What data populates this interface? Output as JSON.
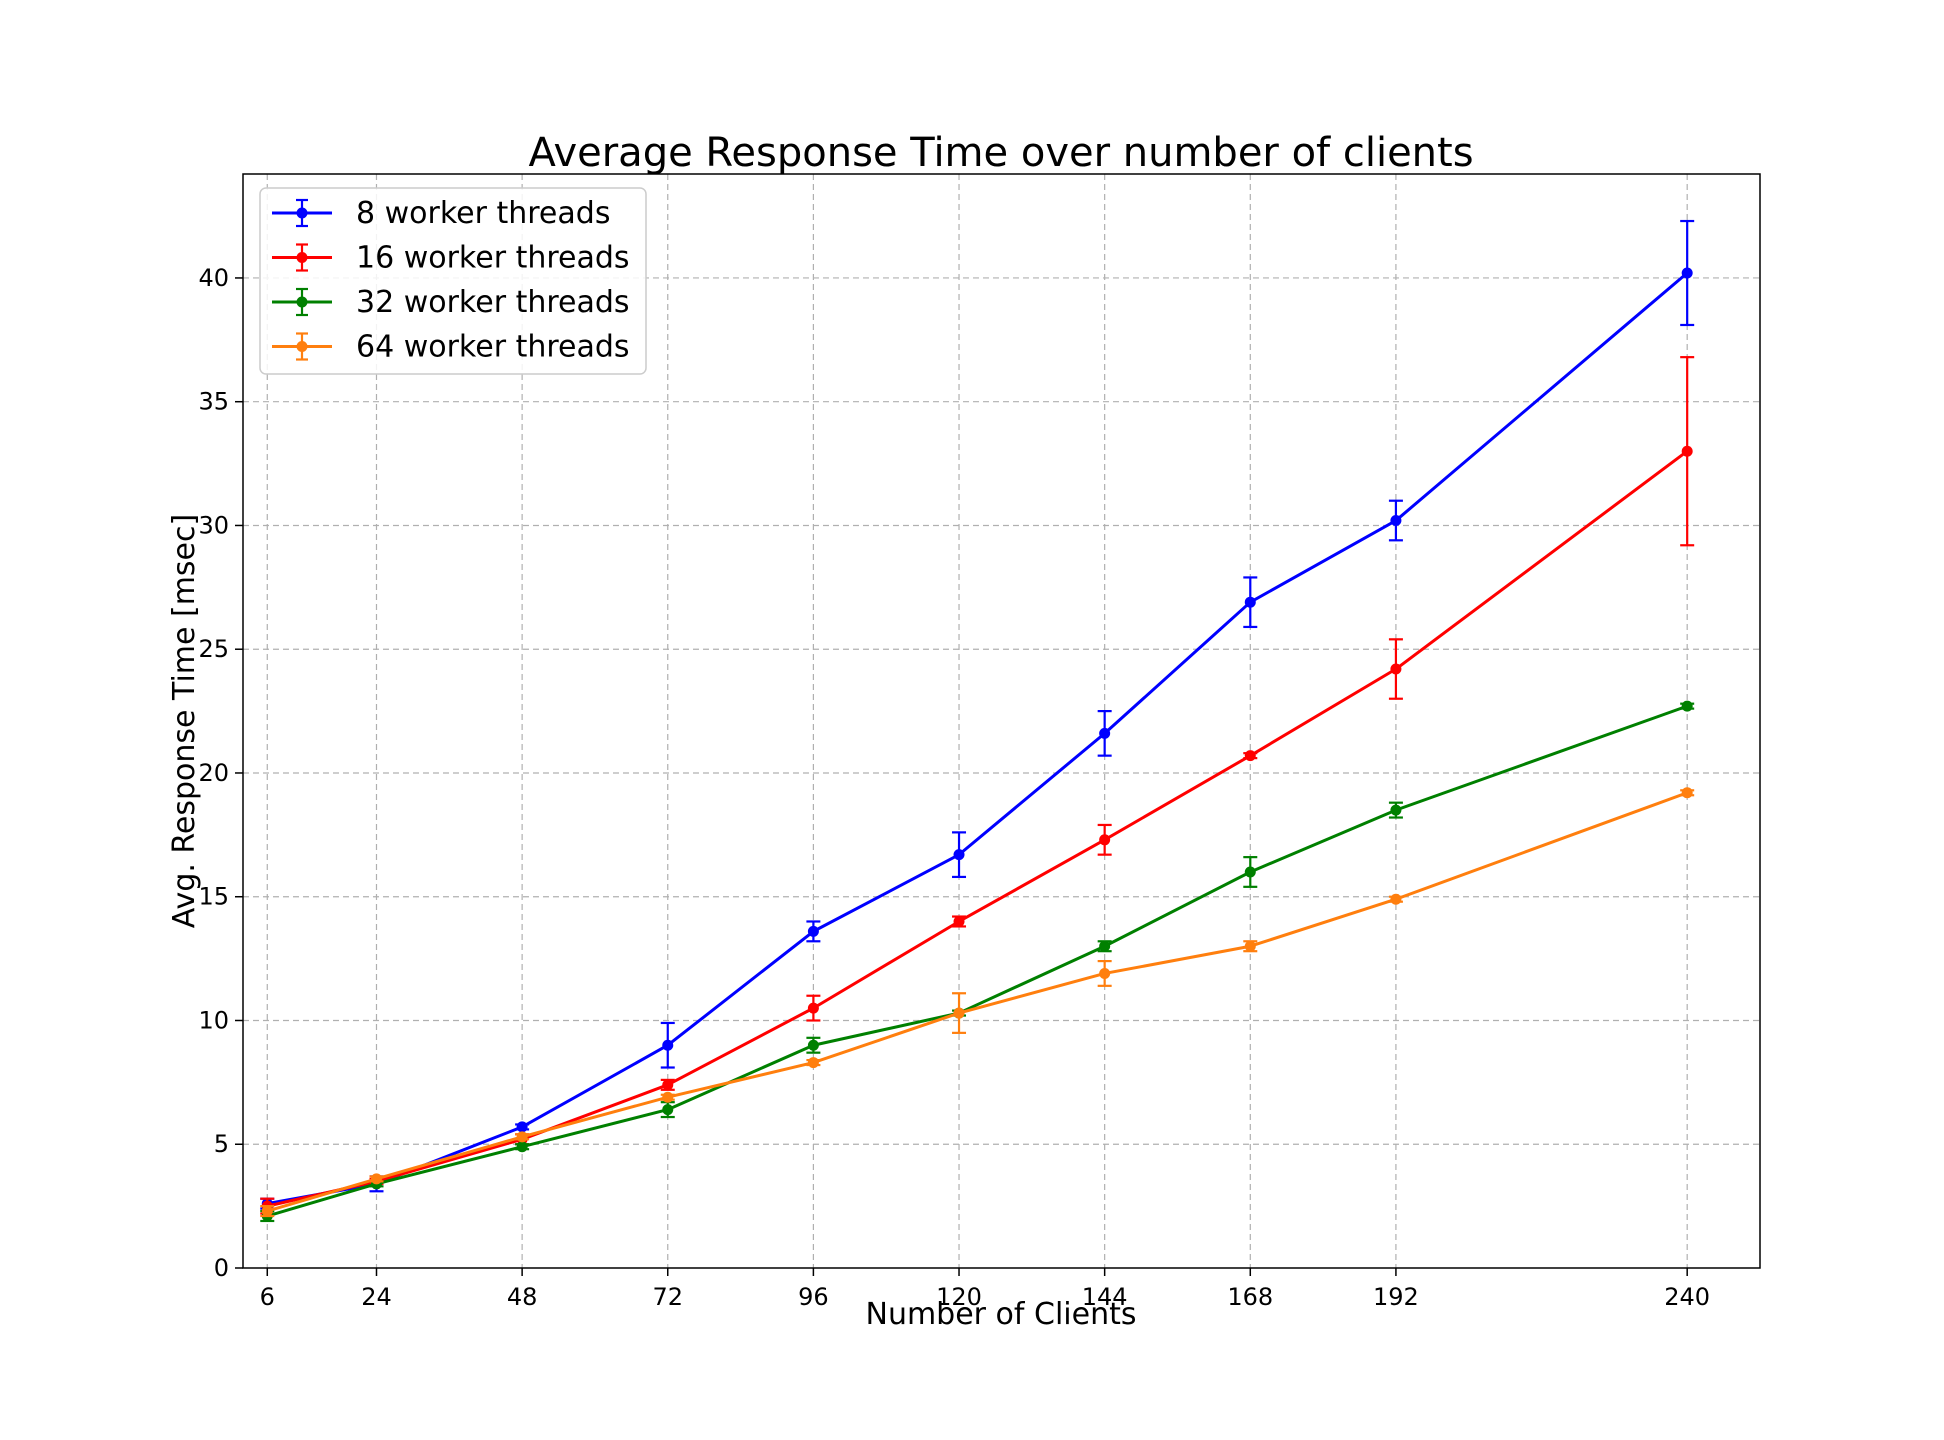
{
  "chart_data": {
    "type": "line",
    "title": "Average Response Time over number of clients",
    "xlabel": "Number of Clients",
    "ylabel": "Avg. Response Time [msec]",
    "x": [
      6,
      24,
      48,
      72,
      96,
      120,
      144,
      168,
      192,
      240
    ],
    "xticks": [
      "6",
      "24",
      "48",
      "72",
      "96",
      "120",
      "144",
      "168",
      "192",
      "240"
    ],
    "yticks": [
      "0",
      "5",
      "10",
      "15",
      "20",
      "25",
      "30",
      "35",
      "40"
    ],
    "xlim": [
      2,
      252
    ],
    "ylim": [
      0,
      44.2
    ],
    "grid": true,
    "legend_position": "upper-left",
    "series": [
      {
        "name": "8 worker threads",
        "color": "#0000ff",
        "values": [
          2.6,
          3.4,
          5.7,
          9.0,
          13.6,
          16.7,
          21.6,
          26.9,
          30.2,
          40.2
        ],
        "errors": [
          0.2,
          0.3,
          0.1,
          0.9,
          0.4,
          0.9,
          0.9,
          1.0,
          0.8,
          2.1
        ]
      },
      {
        "name": "16 worker threads",
        "color": "#ff0000",
        "values": [
          2.5,
          3.5,
          5.2,
          7.4,
          10.5,
          14.0,
          17.3,
          20.7,
          24.2,
          33.0
        ],
        "errors": [
          0.3,
          0.1,
          0.2,
          0.2,
          0.5,
          0.2,
          0.6,
          0.1,
          1.2,
          3.8
        ]
      },
      {
        "name": "32 worker threads",
        "color": "#008000",
        "values": [
          2.1,
          3.4,
          4.9,
          6.4,
          9.0,
          10.3,
          13.0,
          16.0,
          18.5,
          22.7
        ],
        "errors": [
          0.2,
          0.1,
          0.1,
          0.3,
          0.3,
          0.1,
          0.2,
          0.6,
          0.3,
          0.1
        ]
      },
      {
        "name": "64 worker threads",
        "color": "#ff7f0e",
        "values": [
          2.3,
          3.6,
          5.3,
          6.9,
          8.3,
          10.3,
          11.9,
          13.0,
          14.9,
          19.2
        ],
        "errors": [
          0.2,
          0.1,
          0.1,
          0.1,
          0.1,
          0.8,
          0.5,
          0.2,
          0.1,
          0.1
        ]
      }
    ]
  }
}
